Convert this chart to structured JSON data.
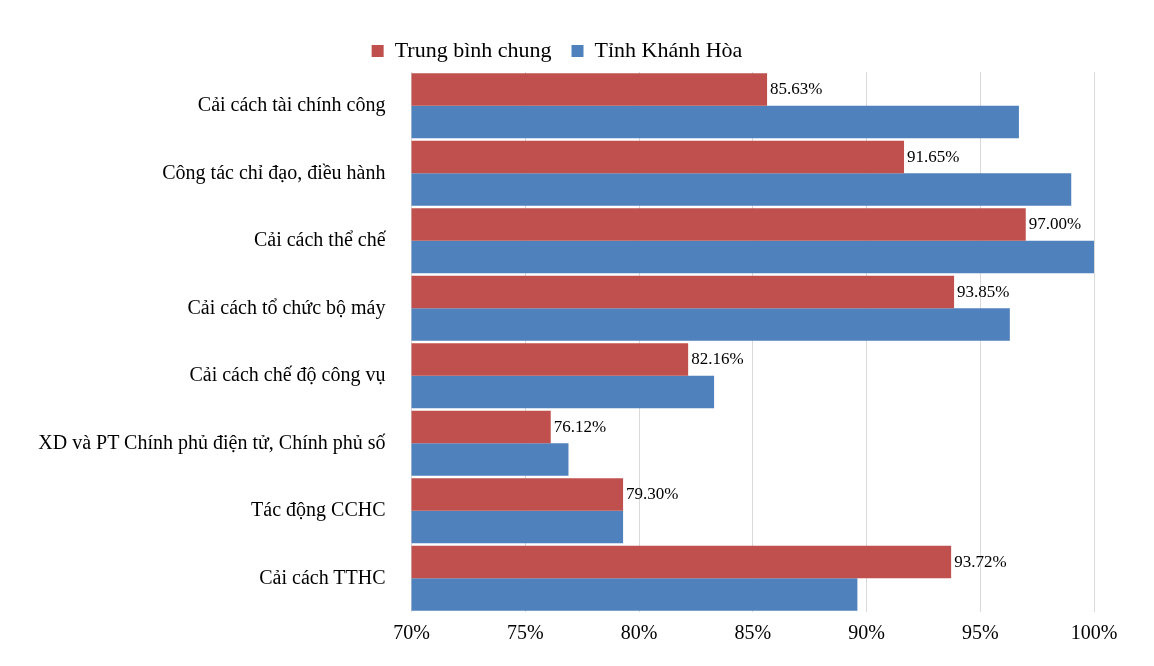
{
  "chart_data": {
    "type": "bar",
    "orientation": "horizontal",
    "categories": [
      "Cải cách tài chính công",
      "Công tác chỉ đạo, điều hành",
      "Cải cách thể chế",
      "Cải cách tổ chức bộ máy",
      "Cải cách chế độ công vụ",
      "XD và PT Chính phủ điện tử, Chính phủ số",
      "Tác động CCHC",
      "Cải cách TTHC"
    ],
    "series": [
      {
        "name": "Trung bình chung",
        "color": "#c0504d",
        "values": [
          85.63,
          91.65,
          97.0,
          93.85,
          82.16,
          76.12,
          79.3,
          93.72
        ],
        "value_labels": [
          "85.63%",
          "91.65%",
          "97.00%",
          "93.85%",
          "82.16%",
          "76.12%",
          "79.30%",
          "93.72%"
        ]
      },
      {
        "name": "Tỉnh Khánh Hòa",
        "color": "#4f81bd",
        "values": [
          96.7,
          99.0,
          100,
          96.3,
          83.3,
          76.9,
          79.3,
          89.6
        ]
      }
    ],
    "xlim": [
      70,
      100
    ],
    "xticks": [
      {
        "value": 70,
        "label": "70%"
      },
      {
        "value": 75,
        "label": "75%"
      },
      {
        "value": 80,
        "label": "80%"
      },
      {
        "value": 85,
        "label": "85%"
      },
      {
        "value": 90,
        "label": "90%"
      },
      {
        "value": 95,
        "label": "95%"
      },
      {
        "value": 100,
        "label": "100%"
      }
    ],
    "grid": "x",
    "legend": "top"
  }
}
